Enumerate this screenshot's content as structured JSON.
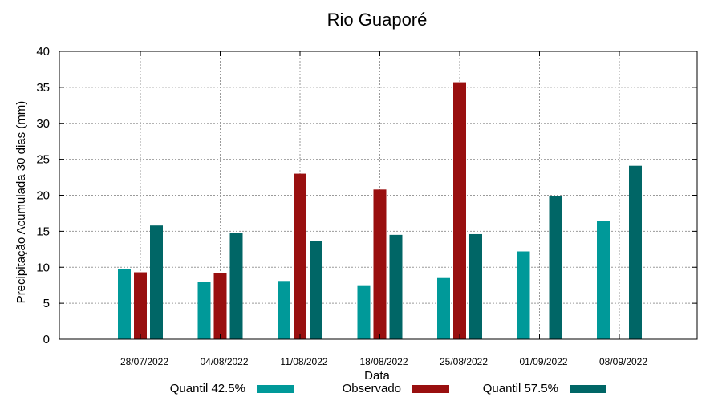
{
  "chart_data": {
    "type": "bar",
    "title": "Rio Guaporé",
    "xlabel": "Data",
    "ylabel": "Precipitação Acumulada 30 dias (mm)",
    "categories": [
      "28/07/2022",
      "04/08/2022",
      "11/08/2022",
      "18/08/2022",
      "25/08/2022",
      "01/09/2022",
      "08/09/2022"
    ],
    "ylim": [
      0,
      40
    ],
    "yticks": [
      0,
      5,
      10,
      15,
      20,
      25,
      30,
      35,
      40
    ],
    "grid": true,
    "legend_position": "bottom",
    "series": [
      {
        "name": "Quantil 42.5%",
        "color": "#009999",
        "values": [
          9.7,
          8.0,
          8.1,
          7.5,
          8.5,
          12.2,
          16.4
        ]
      },
      {
        "name": "Observado",
        "color": "#990f0f",
        "values": [
          9.3,
          9.2,
          23.0,
          20.8,
          35.7,
          null,
          null
        ]
      },
      {
        "name": "Quantil 57.5%",
        "color": "#006666",
        "values": [
          15.8,
          14.8,
          13.6,
          14.5,
          14.6,
          19.9,
          24.1
        ]
      }
    ]
  }
}
